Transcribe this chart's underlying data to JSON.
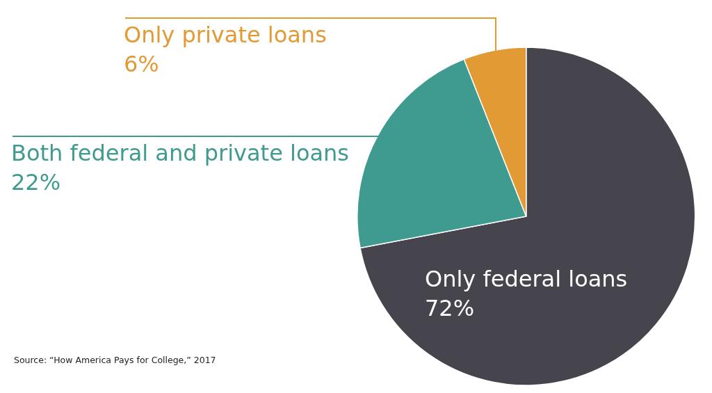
{
  "chart_data": {
    "type": "pie",
    "categories": [
      "Only federal loans",
      "Both federal and private loans",
      "Only private loans"
    ],
    "values": [
      72,
      22,
      6
    ],
    "value_labels": [
      "72%",
      "22%",
      "6%"
    ],
    "colors": [
      "#46444c",
      "#3f9a8f",
      "#e29a35"
    ],
    "legend": false,
    "annotations": [
      "Source: “How America Pays for College,” 2017"
    ]
  }
}
